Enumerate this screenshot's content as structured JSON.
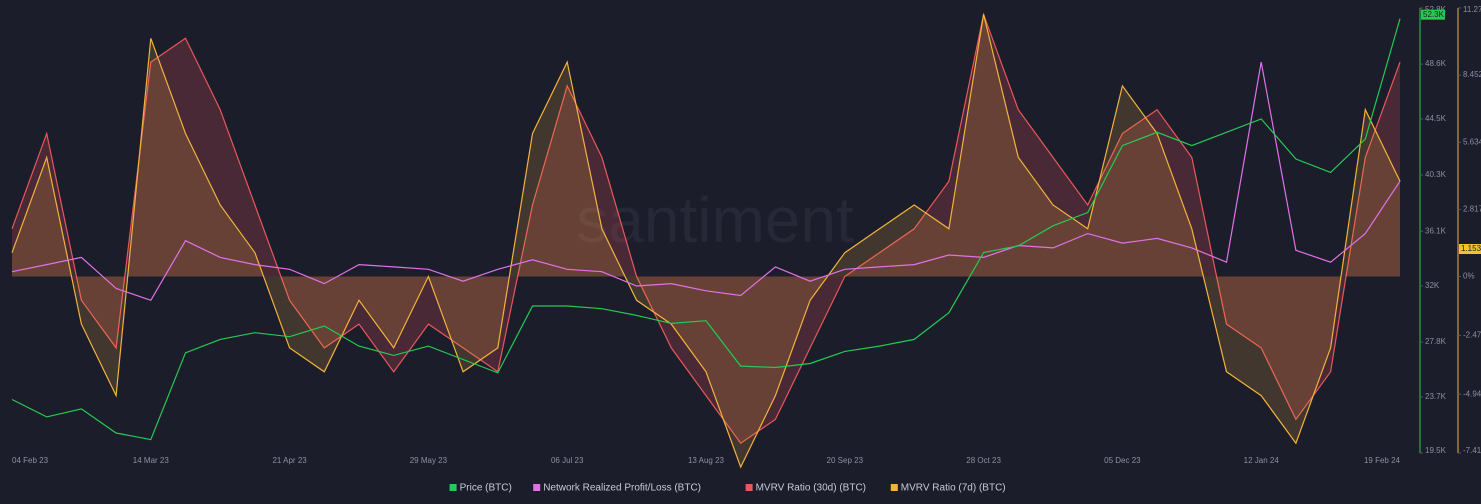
{
  "chart_data": {
    "type": "line",
    "watermark": "santiment",
    "categories": [
      "04 Feb 23",
      null,
      null,
      null,
      "14 Mar 23",
      null,
      null,
      null,
      "21 Apr 23",
      null,
      null,
      null,
      "29 May 23",
      null,
      null,
      null,
      "06 Jul 23",
      null,
      null,
      null,
      "13 Aug 23",
      null,
      null,
      null,
      "20 Sep 23",
      null,
      null,
      null,
      "28 Oct 23",
      null,
      null,
      null,
      "05 Dec 23",
      null,
      null,
      null,
      "12 Jan 24",
      null,
      null,
      null,
      "19 Feb 24"
    ],
    "series": [
      {
        "name": "Price (BTC)",
        "color": "#26c953",
        "axis": "y",
        "values": [
          23500,
          22200,
          22800,
          21000,
          20500,
          27000,
          28000,
          28500,
          28200,
          29000,
          27500,
          26800,
          27500,
          26500,
          25500,
          30500,
          30500,
          30300,
          29800,
          29200,
          29400,
          26000,
          25900,
          26200,
          27100,
          27500,
          28000,
          30000,
          34500,
          35000,
          36500,
          37500,
          42500,
          43500,
          42500,
          43500,
          44500,
          41500,
          40500,
          43000,
          52000
        ]
      },
      {
        "name": "Network Realized Profit/Loss (BTC)",
        "color": "#e072e6",
        "axis": "y2",
        "values": [
          0.2,
          0.5,
          0.8,
          -0.5,
          -1,
          1.5,
          0.8,
          0.5,
          0.3,
          -0.3,
          0.5,
          0.4,
          0.3,
          -0.2,
          0.3,
          0.7,
          0.3,
          0.2,
          -0.4,
          -0.3,
          -0.6,
          -0.8,
          0.4,
          -0.2,
          0.3,
          0.4,
          0.5,
          0.9,
          0.8,
          1.3,
          1.2,
          1.8,
          1.4,
          1.6,
          1.2,
          0.6,
          9,
          1.1,
          0.6,
          1.8,
          4
        ]
      },
      {
        "name": "MVRV Ratio (30d) (BTC)",
        "color": "#e8575a",
        "axis": "y2",
        "values": [
          2,
          6,
          -1,
          -3,
          9,
          10,
          7,
          3,
          -1,
          -3,
          -2,
          -4,
          -2,
          -3,
          -4,
          3,
          8,
          5,
          0,
          -3,
          -5,
          -7,
          -6,
          -3,
          0,
          1,
          2,
          4,
          11,
          7,
          5,
          3,
          6,
          7,
          5,
          -2,
          -3,
          -6,
          -4,
          5,
          9
        ]
      },
      {
        "name": "MVRV Ratio (7d) (BTC)",
        "color": "#f2b33d",
        "axis": "y2",
        "values": [
          1,
          5,
          -2,
          -5,
          10,
          6,
          3,
          1,
          -3,
          -4,
          -1,
          -3,
          0,
          -4,
          -3,
          6,
          9,
          2,
          -1,
          -2,
          -4,
          -8,
          -5,
          -1,
          1,
          2,
          3,
          2,
          11,
          5,
          3,
          2,
          8,
          6,
          2,
          -4,
          -5,
          -7,
          -3,
          7,
          4
        ]
      }
    ],
    "ylim": [
      19500,
      52800
    ],
    "yticks": [
      {
        "value": 19500,
        "label": "19.5K"
      },
      {
        "value": 23700,
        "label": "23.7K"
      },
      {
        "value": 27800,
        "label": "27.8K"
      },
      {
        "value": 32000,
        "label": "32K"
      },
      {
        "value": 36100,
        "label": "36.1K"
      },
      {
        "value": 40300,
        "label": "40.3K"
      },
      {
        "value": 44500,
        "label": "44.5K"
      },
      {
        "value": 48600,
        "label": "48.6K"
      },
      {
        "value": 52800,
        "label": "52.8K"
      }
    ],
    "y2lim": [
      -7.41,
      11.27
    ],
    "y2ticks": [
      {
        "value": -7.41,
        "label": "-7.41"
      },
      {
        "value": -4.94,
        "label": "-4.94"
      },
      {
        "value": -2.47,
        "label": "-2.47"
      },
      {
        "value": 0,
        "label": "0%"
      },
      {
        "value": 2.817,
        "label": "2.817"
      },
      {
        "value": 5.634,
        "label": "5.634"
      },
      {
        "value": 8.452,
        "label": "8.452"
      },
      {
        "value": 11.27,
        "label": "11.27"
      }
    ],
    "annotations": [
      {
        "text": "52.3K",
        "value": 52300,
        "axis": "y",
        "color": "#26c953"
      },
      {
        "text": "1.153",
        "value": 1.153,
        "axis": "y2",
        "color": "#f2c230"
      }
    ],
    "legend": "bottom"
  }
}
